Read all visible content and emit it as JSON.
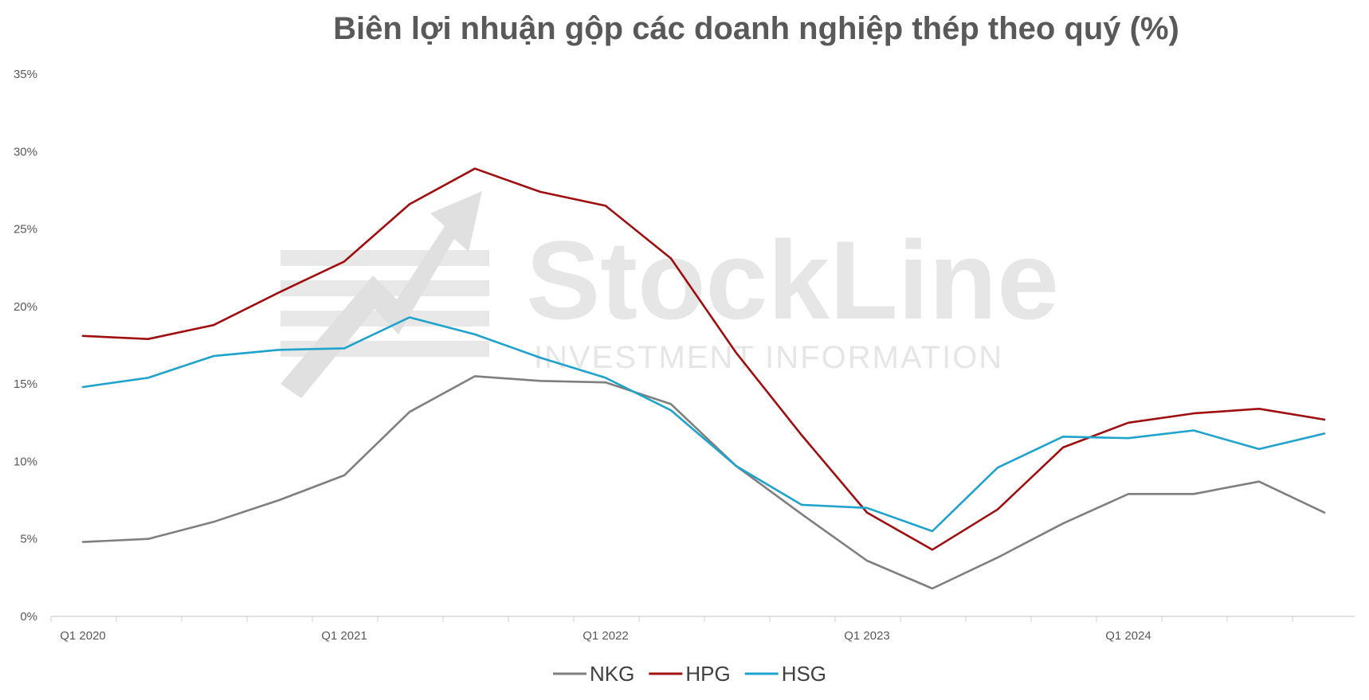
{
  "chart_data": {
    "type": "line",
    "title": "Biên lợi nhuận gộp các doanh nghiệp thép theo quý (%)",
    "x": [
      "Q1 2020",
      "Q2 2020",
      "Q3 2020",
      "Q4 2020",
      "Q1 2021",
      "Q2 2021",
      "Q3 2021",
      "Q4 2021",
      "Q1 2022",
      "Q2 2022",
      "Q3 2022",
      "Q4 2022",
      "Q1 2023",
      "Q2 2023",
      "Q3 2023",
      "Q4 2023",
      "Q1 2024",
      "Q2 2024",
      "Q3 2024",
      "Q4 2024"
    ],
    "x_tick_labels": [
      "Q1 2020",
      "Q1 2021",
      "Q1 2022",
      "Q1 2023",
      "Q1 2024"
    ],
    "y_tick_labels": [
      "0%",
      "5%",
      "10%",
      "15%",
      "20%",
      "25%",
      "30%",
      "35%"
    ],
    "ylim": [
      0,
      35
    ],
    "grid": false,
    "legend_position": "bottom",
    "series": [
      {
        "name": "NKG",
        "color": "#7f7f7f",
        "values": [
          4.8,
          5.0,
          6.1,
          7.5,
          9.1,
          13.2,
          15.5,
          15.2,
          15.1,
          13.7,
          9.7,
          6.6,
          3.6,
          1.8,
          3.8,
          6.0,
          7.9,
          7.9,
          8.7,
          6.7
        ]
      },
      {
        "name": "HPG",
        "color": "#a00f0f",
        "values": [
          18.1,
          17.9,
          18.8,
          20.9,
          22.9,
          26.6,
          28.9,
          27.4,
          26.5,
          23.1,
          17.0,
          11.7,
          6.7,
          4.3,
          6.9,
          10.9,
          12.5,
          13.1,
          13.4,
          12.7
        ]
      },
      {
        "name": "HSG",
        "color": "#1fa3cc",
        "values": [
          14.8,
          15.4,
          16.8,
          17.2,
          17.3,
          19.3,
          18.2,
          16.7,
          15.4,
          13.3,
          9.7,
          7.2,
          7.0,
          5.5,
          9.6,
          11.6,
          11.5,
          12.0,
          10.8,
          11.8
        ]
      }
    ]
  },
  "watermark": {
    "brand": "StockLine",
    "tagline": "INVESTMENT INFORMATION"
  }
}
